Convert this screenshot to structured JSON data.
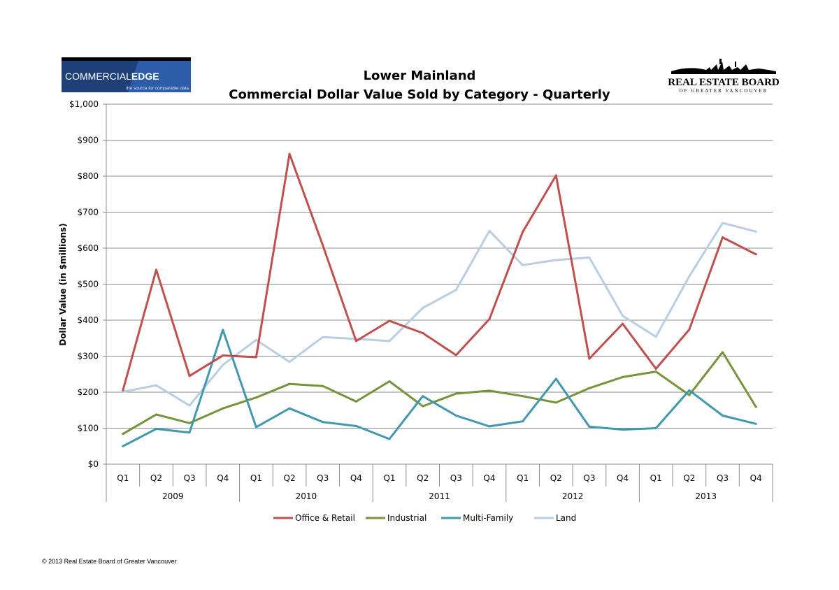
{
  "header": {
    "left_logo": {
      "brand_regular": "COMMERCIAL",
      "brand_bold": "EDGE",
      "tagline": "the source for comparable data",
      "accent_color": "#2d5ca8"
    },
    "right_logo": {
      "line1": "REAL ESTATE BOARD",
      "line2": "OF GREATER VANCOUVER"
    }
  },
  "footer": {
    "copyright": "© 2013 Real Estate Board of Greater Vancouver"
  },
  "chart_data": {
    "type": "line",
    "title": "Lower Mainland",
    "subtitle": "Commercial Dollar Value Sold by Category - Quarterly",
    "ylabel": "Dollar Value (in $millions)",
    "xlabel": "",
    "ylim": [
      0,
      1000
    ],
    "yticks": [
      0,
      100,
      200,
      300,
      400,
      500,
      600,
      700,
      800,
      900,
      1000
    ],
    "ytick_labels": [
      "$0",
      "$100",
      "$200",
      "$300",
      "$400",
      "$500",
      "$600",
      "$700",
      "$800",
      "$900",
      "$1,000"
    ],
    "grid": true,
    "legend_position": "bottom",
    "years": [
      "2009",
      "2010",
      "2011",
      "2012",
      "2013"
    ],
    "categories": [
      "Q1",
      "Q2",
      "Q3",
      "Q4",
      "Q1",
      "Q2",
      "Q3",
      "Q4",
      "Q1",
      "Q2",
      "Q3",
      "Q4",
      "Q1",
      "Q2",
      "Q3",
      "Q4",
      "Q1",
      "Q2",
      "Q3",
      "Q4"
    ],
    "series": [
      {
        "name": "Office & Retail",
        "color": "#c0504d",
        "values": [
          205,
          540,
          245,
          302,
          297,
          862,
          608,
          342,
          398,
          364,
          303,
          403,
          645,
          802,
          293,
          390,
          265,
          374,
          630,
          583
        ]
      },
      {
        "name": "Industrial",
        "color": "#77933c",
        "values": [
          84,
          138,
          114,
          155,
          185,
          223,
          217,
          174,
          230,
          161,
          196,
          204,
          189,
          171,
          211,
          242,
          257,
          192,
          311,
          159
        ]
      },
      {
        "name": "Multi-Family",
        "color": "#4198af",
        "values": [
          50,
          98,
          88,
          373,
          103,
          155,
          117,
          106,
          70,
          189,
          135,
          105,
          119,
          237,
          104,
          96,
          100,
          205,
          135,
          112
        ]
      },
      {
        "name": "Land",
        "color": "#b9cde5",
        "values": [
          201,
          219,
          163,
          276,
          345,
          284,
          353,
          348,
          342,
          434,
          484,
          648,
          553,
          567,
          574,
          412,
          354,
          522,
          670,
          646
        ]
      }
    ]
  }
}
